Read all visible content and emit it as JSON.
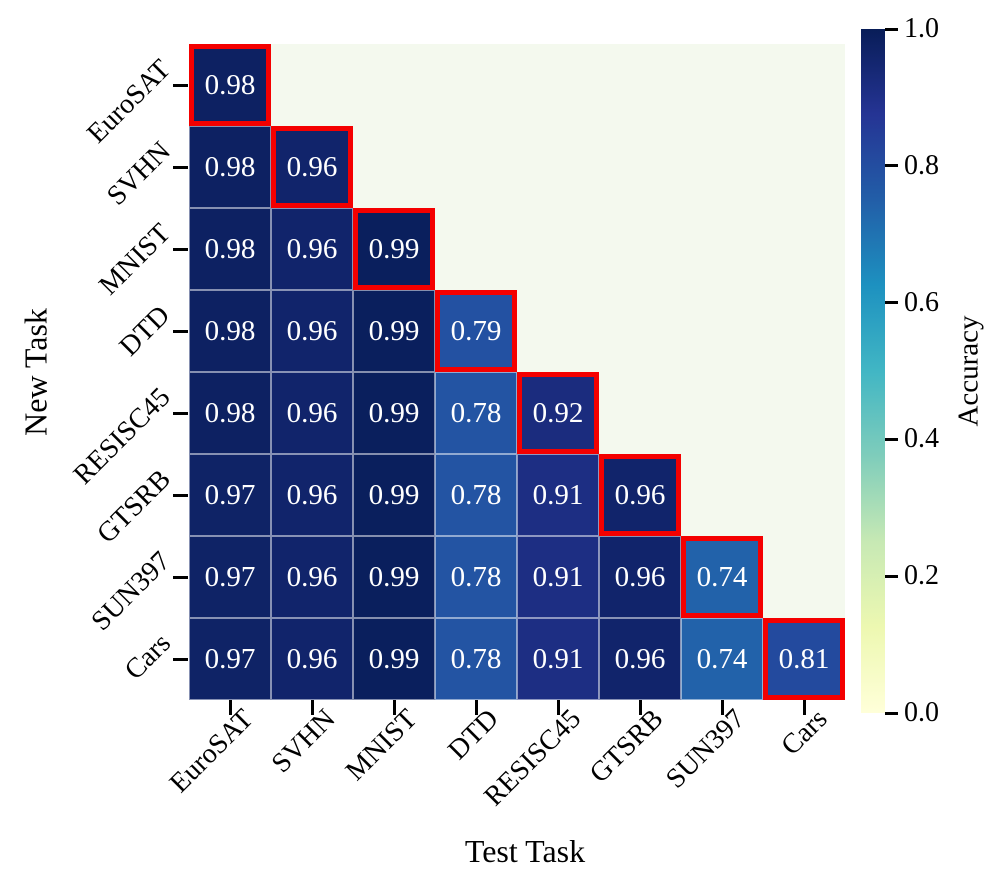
{
  "chart_data": {
    "type": "heatmap",
    "title": "",
    "xlabel": "Test Task",
    "ylabel": "New Task",
    "x_categories": [
      "EuroSAT",
      "SVHN",
      "MNIST",
      "DTD",
      "RESISC45",
      "GTSRB",
      "SUN397",
      "Cars"
    ],
    "y_categories": [
      "EuroSAT",
      "SVHN",
      "MNIST",
      "DTD",
      "RESISC45",
      "GTSRB",
      "SUN397",
      "Cars"
    ],
    "rows": [
      [
        0.98
      ],
      [
        0.98,
        0.96
      ],
      [
        0.98,
        0.96,
        0.99
      ],
      [
        0.98,
        0.96,
        0.99,
        0.79
      ],
      [
        0.98,
        0.96,
        0.99,
        0.78,
        0.92
      ],
      [
        0.97,
        0.96,
        0.99,
        0.78,
        0.91,
        0.96
      ],
      [
        0.97,
        0.96,
        0.99,
        0.78,
        0.91,
        0.96,
        0.74
      ],
      [
        0.97,
        0.96,
        0.99,
        0.78,
        0.91,
        0.96,
        0.74,
        0.81
      ]
    ],
    "value_decimals": 2,
    "shape": "lower-triangle",
    "diagonal_highlighted": true,
    "grid": true,
    "legend_position": "right-colorbar",
    "colorbar": {
      "label": "Accuracy",
      "min": 0.0,
      "max": 1.0,
      "tick_values": [
        1.0,
        0.8,
        0.6,
        0.4,
        0.2,
        0.0
      ],
      "tick_labels": [
        "1.0",
        "0.8",
        "0.6",
        "0.4",
        "0.2",
        "0.0"
      ],
      "colormap": "YlGnBu",
      "colormap_stops": [
        {
          "pos": 0.0,
          "color": "#ffffd9"
        },
        {
          "pos": 0.125,
          "color": "#edf8b1"
        },
        {
          "pos": 0.25,
          "color": "#c7e9b4"
        },
        {
          "pos": 0.375,
          "color": "#7fcdbb"
        },
        {
          "pos": 0.5,
          "color": "#41b6c4"
        },
        {
          "pos": 0.625,
          "color": "#1d91c0"
        },
        {
          "pos": 0.75,
          "color": "#225ea8"
        },
        {
          "pos": 0.875,
          "color": "#253494"
        },
        {
          "pos": 1.0,
          "color": "#081d58"
        }
      ]
    },
    "colors": {
      "figure_background": "#ffffff",
      "masked_background": "#f4f9ee",
      "diagonal_border": "#f40000",
      "cell_text": "#ffffff",
      "axis_text": "#000000",
      "gridline": "rgba(255,255,255,0.5)"
    }
  }
}
